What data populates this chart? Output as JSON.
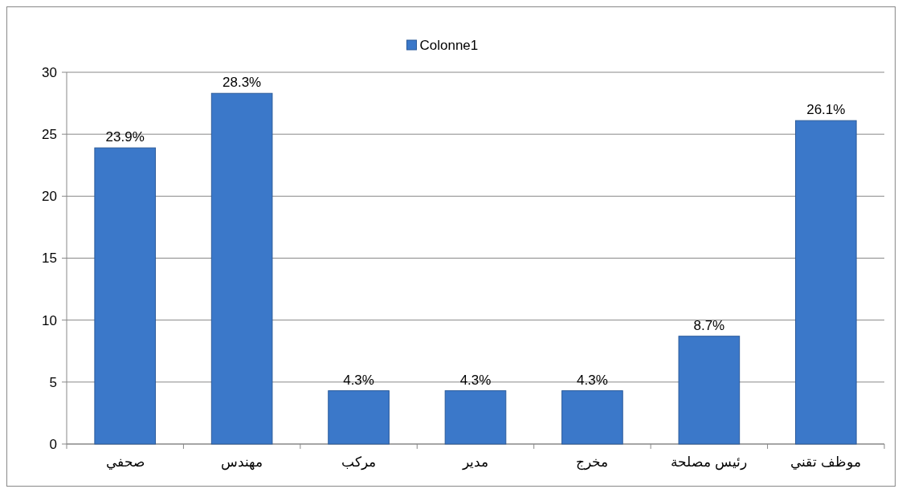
{
  "chart_data": {
    "type": "bar",
    "categories": [
      "صحفي",
      "مهندس",
      "مركب",
      "مدير",
      "مخرج",
      "رئيس مصلحة",
      "موظف تقني"
    ],
    "series": [
      {
        "name": "Colonne1",
        "color": "#3b78c9",
        "values": [
          23.9,
          28.3,
          4.3,
          4.3,
          4.3,
          8.7,
          26.1
        ],
        "value_labels": [
          "23.9%",
          "28.3%",
          "4.3%",
          "4.3%",
          "4.3%",
          "8.7%",
          "26.1%"
        ]
      }
    ],
    "ylim": [
      0,
      30
    ],
    "yticks": [
      0,
      5,
      10,
      15,
      20,
      25,
      30
    ],
    "grid": "y",
    "legend": "top"
  }
}
